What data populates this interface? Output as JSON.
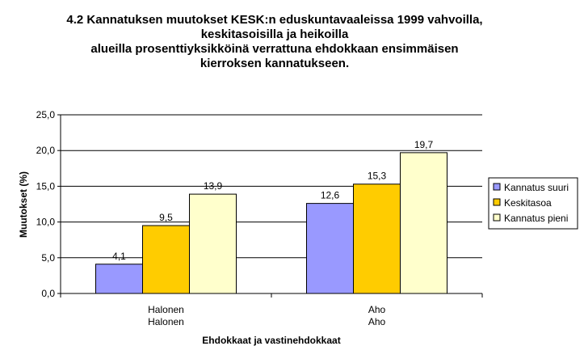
{
  "chart_data": {
    "type": "bar",
    "title_lines": [
      "4.2 Kannatuksen muutokset KESK:n eduskuntavaaleissa 1999 vahvoilla,",
      "keskitasoisilla ja heikoilla",
      "alueilla prosenttiyksikköinä verrattuna ehdokkaan ensimmäisen",
      "kierroksen kannatukseen."
    ],
    "categories": [
      [
        "Halonen",
        "Halonen"
      ],
      [
        "Aho",
        "Aho"
      ]
    ],
    "series": [
      {
        "name": "Kannatus suuri",
        "color": "#9999ff",
        "values": [
          4.1,
          12.6
        ],
        "labels": [
          "4,1",
          "12,6"
        ]
      },
      {
        "name": "Keskitasoa",
        "color": "#ffcc00",
        "values": [
          9.5,
          15.3
        ],
        "labels": [
          "9,5",
          "15,3"
        ]
      },
      {
        "name": "Kannatus pieni",
        "color": "#ffffcc",
        "values": [
          13.9,
          19.7
        ],
        "labels": [
          "13,9",
          "19,7"
        ]
      }
    ],
    "xlabel": "Ehdokkaat ja vastinehdokkaat",
    "ylabel": "Muutokset (%)",
    "ylim": [
      0,
      25
    ],
    "yticks": [
      0,
      5,
      10,
      15,
      20,
      25
    ],
    "ytick_labels": [
      "0,0",
      "5,0",
      "10,0",
      "15,0",
      "20,0",
      "25,0"
    ],
    "grid": true,
    "legend_position": "right"
  }
}
